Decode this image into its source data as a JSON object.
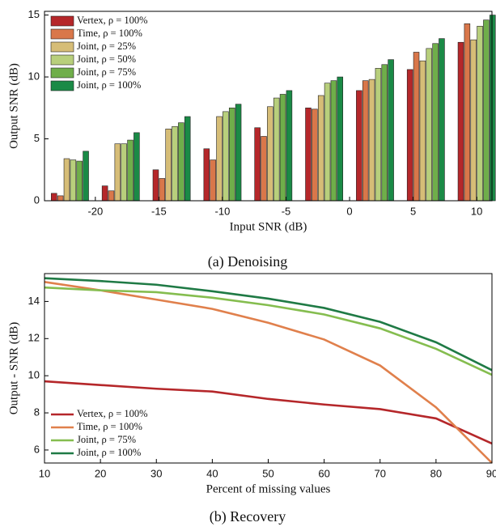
{
  "chart_data": [
    {
      "type": "bar",
      "caption": "(a) Denoising",
      "xlabel": "Input SNR (dB)",
      "ylabel": "Output SNR (dB)",
      "x": [
        -22,
        -18,
        -14,
        -10,
        -6,
        -2,
        2,
        6,
        10
      ],
      "xlim": [
        -24,
        11.2
      ],
      "xticks": [
        -20,
        -15,
        -10,
        -5,
        0,
        5,
        10
      ],
      "ylim": [
        0,
        15.3
      ],
      "yticks": [
        0,
        5,
        10,
        15
      ],
      "legend": "upper left",
      "series": [
        {
          "name": "Vertex, ρ = 100%",
          "color": "#b5272a",
          "values": [
            0.6,
            1.2,
            2.5,
            4.2,
            5.9,
            7.5,
            8.9,
            10.6,
            12.8
          ]
        },
        {
          "name": "Time, ρ = 100%",
          "color": "#d9774a",
          "values": [
            0.4,
            0.8,
            1.8,
            3.3,
            5.2,
            7.4,
            9.7,
            12.0,
            14.3
          ]
        },
        {
          "name": "Joint, ρ = 25%",
          "color": "#d6bd77",
          "values": [
            3.4,
            4.6,
            5.8,
            6.8,
            7.6,
            8.5,
            9.8,
            11.3,
            13.0
          ]
        },
        {
          "name": "Joint, ρ = 50%",
          "color": "#b8cf7c",
          "values": [
            3.3,
            4.6,
            6.0,
            7.2,
            8.3,
            9.5,
            10.7,
            12.3,
            14.1
          ]
        },
        {
          "name": "Joint, ρ = 75%",
          "color": "#6fae4a",
          "values": [
            3.2,
            4.9,
            6.3,
            7.5,
            8.6,
            9.7,
            11.0,
            12.7,
            14.6
          ]
        },
        {
          "name": "Joint, ρ = 100%",
          "color": "#1a8a46",
          "values": [
            4.0,
            5.5,
            6.8,
            7.8,
            8.9,
            10.0,
            11.4,
            13.1,
            15.0
          ]
        }
      ]
    },
    {
      "type": "line",
      "caption": "(b) Recovery",
      "xlabel": "Percent of missing values",
      "ylabel": "Output - SNR (dB)",
      "x": [
        10,
        20,
        30,
        40,
        50,
        60,
        70,
        80,
        90
      ],
      "xlim": [
        10,
        90
      ],
      "xticks": [
        10,
        20,
        30,
        40,
        50,
        60,
        70,
        80,
        90
      ],
      "ylim": [
        5.3,
        15.5
      ],
      "yticks": [
        6,
        8,
        10,
        12,
        14
      ],
      "legend": "lower left",
      "series": [
        {
          "name": "Vertex, ρ = 100%",
          "color": "#b5272a",
          "values": [
            9.7,
            9.5,
            9.3,
            9.15,
            8.75,
            8.45,
            8.2,
            7.7,
            6.35
          ]
        },
        {
          "name": "Time, ρ = 100%",
          "color": "#e0804c",
          "values": [
            15.05,
            14.6,
            14.1,
            13.6,
            12.85,
            11.95,
            10.55,
            8.3,
            5.3
          ]
        },
        {
          "name": "Joint, ρ = 75%",
          "color": "#85bd4f",
          "values": [
            14.75,
            14.6,
            14.5,
            14.2,
            13.8,
            13.3,
            12.55,
            11.45,
            10.05
          ]
        },
        {
          "name": "Joint, ρ = 100%",
          "color": "#1f7a45",
          "values": [
            15.25,
            15.1,
            14.9,
            14.55,
            14.15,
            13.65,
            12.9,
            11.8,
            10.3
          ]
        }
      ]
    }
  ]
}
